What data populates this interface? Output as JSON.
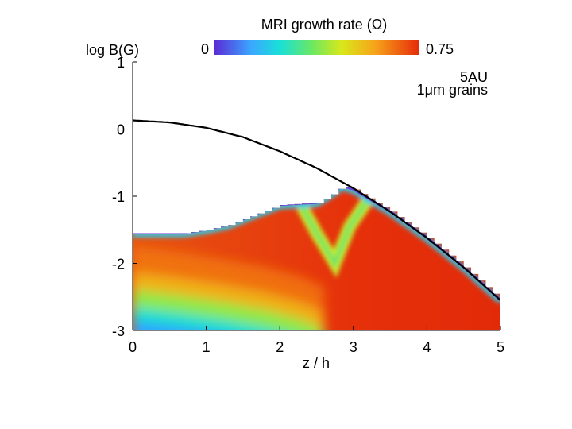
{
  "chart_data": {
    "type": "heatmap",
    "title": "MRI growth rate (Ω)",
    "xlabel": "z / h",
    "ylabel": "log B(G)",
    "xlim": [
      0,
      5
    ],
    "ylim": [
      -3,
      1
    ],
    "xticks": [
      "0",
      "1",
      "2",
      "3",
      "4",
      "5"
    ],
    "yticks": [
      "1",
      "0",
      "-1",
      "-2",
      "-3"
    ],
    "colorbar": {
      "min_label": "0",
      "max_label": "0.75",
      "min": 0,
      "max": 0.75,
      "colors": [
        "#5b2bd6",
        "#3aa8ff",
        "#19e0d8",
        "#6ee860",
        "#d8e81a",
        "#f7a51a",
        "#e62a0a"
      ]
    },
    "annotation": {
      "line1": "5AU",
      "line2": "1μm grains"
    },
    "boundary_curve": {
      "z": [
        0,
        0.5,
        1,
        1.5,
        2,
        2.5,
        3,
        3.5,
        4,
        4.5,
        5
      ],
      "logB": [
        0.13,
        0.1,
        0.02,
        -0.12,
        -0.33,
        -0.58,
        -0.88,
        -1.23,
        -1.62,
        -2.06,
        -2.55
      ]
    },
    "active_region_upper_edge": {
      "z": [
        0,
        0.7,
        1,
        1.3,
        1.6,
        2.0,
        2.3,
        2.5,
        2.7,
        2.85,
        3.0,
        3.5,
        4,
        4.5,
        5
      ],
      "logB": [
        -1.55,
        -1.55,
        -1.5,
        -1.43,
        -1.3,
        -1.13,
        -1.11,
        -1.1,
        -0.97,
        -0.85,
        -0.9,
        -1.23,
        -1.62,
        -2.06,
        -2.55
      ]
    },
    "groove": {
      "z": [
        2.3,
        2.5,
        2.75,
        2.95,
        3.2
      ],
      "logB": [
        -1.15,
        -1.55,
        -2.0,
        -1.45,
        -1.05
      ]
    },
    "grid": false
  }
}
